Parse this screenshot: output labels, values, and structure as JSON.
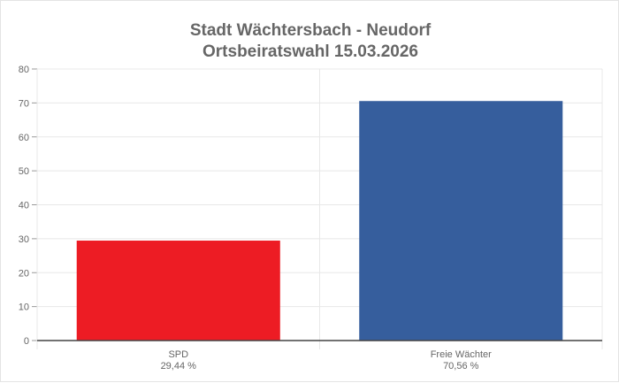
{
  "chart_data": {
    "type": "bar",
    "title": [
      "Stadt Wächtersbach - Neudorf",
      "Ortsbeiratswahl 15.03.2026"
    ],
    "categories": [
      "SPD",
      "Freie Wächter"
    ],
    "category_sublabels": [
      "29,44 %",
      "70,56 %"
    ],
    "values": [
      29.44,
      70.56
    ],
    "colors": [
      "#ed1c24",
      "#365e9d"
    ],
    "ylim": [
      0,
      80
    ],
    "yticks": [
      0,
      10,
      20,
      30,
      40,
      50,
      60,
      70,
      80
    ],
    "grid": true,
    "legend": "none"
  }
}
